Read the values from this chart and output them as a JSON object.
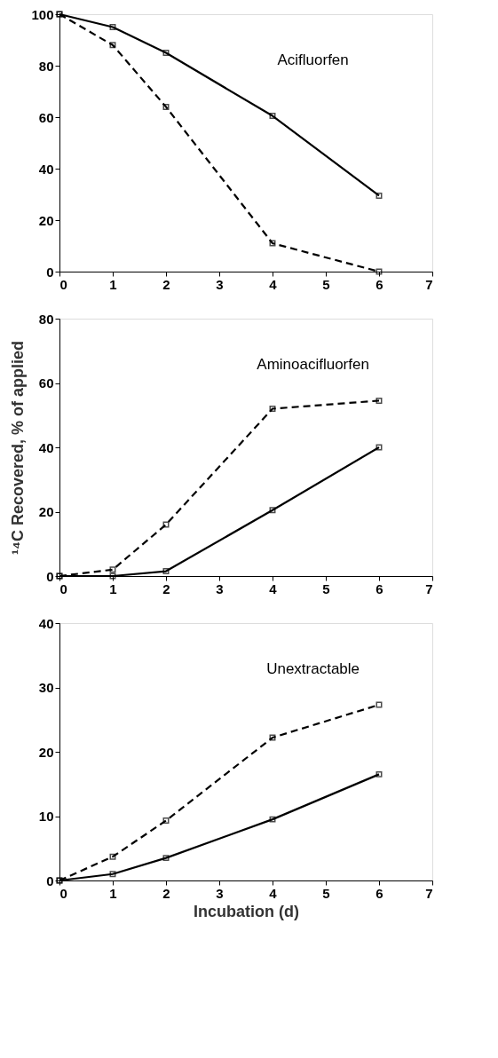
{
  "chart_data": [
    {
      "type": "line",
      "title": "Acifluorfen",
      "x": [
        0,
        1,
        2,
        4,
        6
      ],
      "xlim": [
        0,
        7
      ],
      "xticks": [
        0,
        1,
        2,
        3,
        4,
        5,
        6,
        7
      ],
      "ylim": [
        0,
        100
      ],
      "yticks": [
        0,
        20,
        40,
        60,
        80,
        100
      ],
      "grid": false,
      "marker": "square",
      "series": [
        {
          "color": "#000000",
          "line_style": "solid",
          "values": [
            100,
            95,
            85,
            60.5,
            29.5
          ]
        },
        {
          "color": "#000000",
          "line_style": "dashed",
          "values": [
            100,
            88,
            64,
            11,
            0
          ]
        }
      ]
    },
    {
      "type": "line",
      "title": "Aminoacifluorfen",
      "ylabel": "¹⁴C Recovered, % of applied",
      "x": [
        0,
        1,
        2,
        4,
        6
      ],
      "xlim": [
        0,
        7
      ],
      "xticks": [
        0,
        1,
        2,
        3,
        4,
        5,
        6,
        7
      ],
      "ylim": [
        0,
        80
      ],
      "yticks": [
        0,
        20,
        40,
        60,
        80
      ],
      "grid": false,
      "marker": "square",
      "series": [
        {
          "color": "#000000",
          "line_style": "solid",
          "values": [
            0,
            0,
            1.5,
            20.5,
            40
          ]
        },
        {
          "color": "#000000",
          "line_style": "dashed",
          "values": [
            0,
            2,
            16,
            52,
            54.5
          ]
        }
      ]
    },
    {
      "type": "line",
      "title": "Unextractable",
      "xlabel": "Incubation (d)",
      "x": [
        0,
        1,
        2,
        4,
        6
      ],
      "xlim": [
        0,
        7
      ],
      "xticks": [
        0,
        1,
        2,
        3,
        4,
        5,
        6,
        7
      ],
      "ylim": [
        0,
        40
      ],
      "yticks": [
        0,
        10,
        20,
        30,
        40
      ],
      "grid": false,
      "marker": "square",
      "series": [
        {
          "color": "#000000",
          "line_style": "solid",
          "values": [
            0,
            1,
            3.5,
            9.5,
            16.5
          ]
        },
        {
          "color": "#000000",
          "line_style": "dashed",
          "values": [
            0,
            3.7,
            9.3,
            22.2,
            27.3
          ]
        }
      ]
    }
  ]
}
